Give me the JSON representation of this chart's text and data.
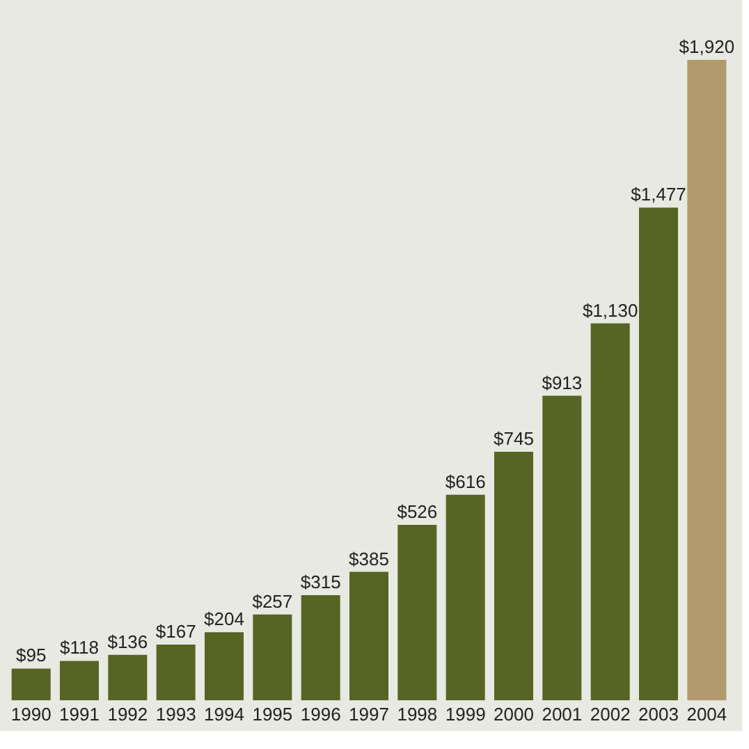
{
  "chart_data": {
    "type": "bar",
    "categories": [
      "1990",
      "1991",
      "1992",
      "1993",
      "1994",
      "1995",
      "1996",
      "1997",
      "1998",
      "1999",
      "2000",
      "2001",
      "2002",
      "2003",
      "2004"
    ],
    "values": [
      95,
      118,
      136,
      167,
      204,
      257,
      315,
      385,
      526,
      616,
      745,
      913,
      1130,
      1477,
      1920
    ],
    "colors": [
      "#566424",
      "#566424",
      "#566424",
      "#566424",
      "#566424",
      "#566424",
      "#566424",
      "#566424",
      "#566424",
      "#566424",
      "#566424",
      "#566424",
      "#566424",
      "#566424",
      "#b09a6e"
    ],
    "value_labels": [
      "$95",
      "$118",
      "$136",
      "$167",
      "$204",
      "$257",
      "$315",
      "$385",
      "$526",
      "$616",
      "$745",
      "$913",
      "$1,130",
      "$1,477",
      "$1,920"
    ],
    "grid": false
  }
}
